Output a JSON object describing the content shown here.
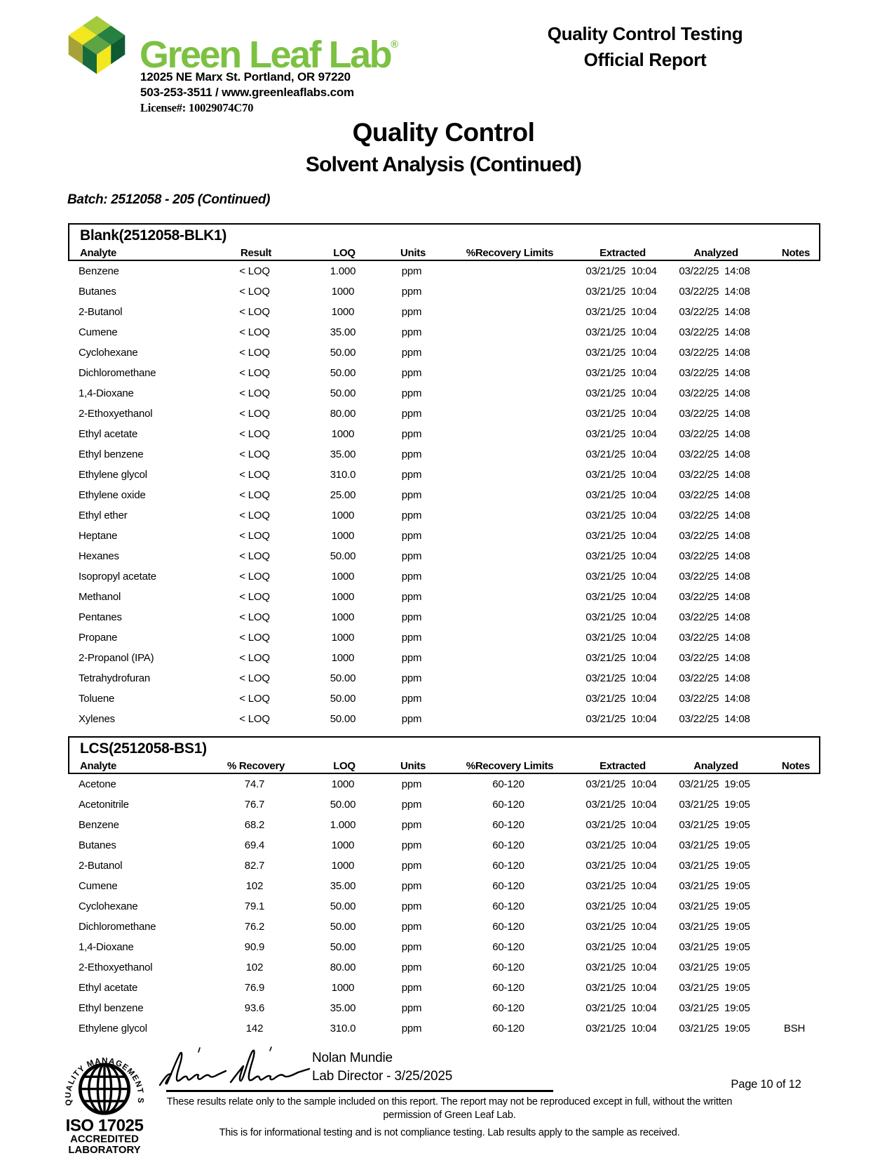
{
  "header": {
    "brand_name": "Green Leaf Lab",
    "brand_reg": "®",
    "address": "12025 NE Marx St. Portland, OR 97220",
    "phone_web": "503-253-3511 / www.greenleaflabs.com",
    "license": "License#: 10029074C70",
    "report_title_line1": "Quality Control Testing",
    "report_title_line2": "Official Report"
  },
  "titles": {
    "main": "Quality Control",
    "subtitle": "Solvent Analysis (Continued)",
    "batch": "Batch:  2512058 - 205 (Continued)"
  },
  "colors": {
    "brand_green": "#7CC142",
    "logo_light_green": "#A3CB3B",
    "logo_yellow": "#F3E71F",
    "logo_dark_green": "#26803F",
    "logo_mid_green": "#5EA344",
    "logo_olive": "#A6A238",
    "logo_deep_green": "#176B3B",
    "logo_darkest_green": "#0E5B33",
    "text": "#000000"
  },
  "tables": [
    {
      "title": "Blank(2512058-BLK1)",
      "columns": [
        "Analyte",
        "Result",
        "LOQ",
        "Units",
        "%Recovery Limits",
        "Extracted",
        "Analyzed",
        "Notes"
      ],
      "rows": [
        [
          "Benzene",
          "< LOQ",
          "1.000",
          "ppm",
          "",
          "03/21/25  10:04",
          "03/22/25  14:08",
          ""
        ],
        [
          "Butanes",
          "< LOQ",
          "1000",
          "ppm",
          "",
          "03/21/25  10:04",
          "03/22/25  14:08",
          ""
        ],
        [
          "2-Butanol",
          "< LOQ",
          "1000",
          "ppm",
          "",
          "03/21/25  10:04",
          "03/22/25  14:08",
          ""
        ],
        [
          "Cumene",
          "< LOQ",
          "35.00",
          "ppm",
          "",
          "03/21/25  10:04",
          "03/22/25  14:08",
          ""
        ],
        [
          "Cyclohexane",
          "< LOQ",
          "50.00",
          "ppm",
          "",
          "03/21/25  10:04",
          "03/22/25  14:08",
          ""
        ],
        [
          "Dichloromethane",
          "< LOQ",
          "50.00",
          "ppm",
          "",
          "03/21/25  10:04",
          "03/22/25  14:08",
          ""
        ],
        [
          "1,4-Dioxane",
          "< LOQ",
          "50.00",
          "ppm",
          "",
          "03/21/25  10:04",
          "03/22/25  14:08",
          ""
        ],
        [
          "2-Ethoxyethanol",
          "< LOQ",
          "80.00",
          "ppm",
          "",
          "03/21/25  10:04",
          "03/22/25  14:08",
          ""
        ],
        [
          "Ethyl acetate",
          "< LOQ",
          "1000",
          "ppm",
          "",
          "03/21/25  10:04",
          "03/22/25  14:08",
          ""
        ],
        [
          "Ethyl benzene",
          "< LOQ",
          "35.00",
          "ppm",
          "",
          "03/21/25  10:04",
          "03/22/25  14:08",
          ""
        ],
        [
          "Ethylene glycol",
          "< LOQ",
          "310.0",
          "ppm",
          "",
          "03/21/25  10:04",
          "03/22/25  14:08",
          ""
        ],
        [
          "Ethylene oxide",
          "< LOQ",
          "25.00",
          "ppm",
          "",
          "03/21/25  10:04",
          "03/22/25  14:08",
          ""
        ],
        [
          "Ethyl ether",
          "< LOQ",
          "1000",
          "ppm",
          "",
          "03/21/25  10:04",
          "03/22/25  14:08",
          ""
        ],
        [
          "Heptane",
          "< LOQ",
          "1000",
          "ppm",
          "",
          "03/21/25  10:04",
          "03/22/25  14:08",
          ""
        ],
        [
          "Hexanes",
          "< LOQ",
          "50.00",
          "ppm",
          "",
          "03/21/25  10:04",
          "03/22/25  14:08",
          ""
        ],
        [
          "Isopropyl acetate",
          "< LOQ",
          "1000",
          "ppm",
          "",
          "03/21/25  10:04",
          "03/22/25  14:08",
          ""
        ],
        [
          "Methanol",
          "< LOQ",
          "1000",
          "ppm",
          "",
          "03/21/25  10:04",
          "03/22/25  14:08",
          ""
        ],
        [
          "Pentanes",
          "< LOQ",
          "1000",
          "ppm",
          "",
          "03/21/25  10:04",
          "03/22/25  14:08",
          ""
        ],
        [
          "Propane",
          "< LOQ",
          "1000",
          "ppm",
          "",
          "03/21/25  10:04",
          "03/22/25  14:08",
          ""
        ],
        [
          "2-Propanol (IPA)",
          "< LOQ",
          "1000",
          "ppm",
          "",
          "03/21/25  10:04",
          "03/22/25  14:08",
          ""
        ],
        [
          "Tetrahydrofuran",
          "< LOQ",
          "50.00",
          "ppm",
          "",
          "03/21/25  10:04",
          "03/22/25  14:08",
          ""
        ],
        [
          "Toluene",
          "< LOQ",
          "50.00",
          "ppm",
          "",
          "03/21/25  10:04",
          "03/22/25  14:08",
          ""
        ],
        [
          "Xylenes",
          "< LOQ",
          "50.00",
          "ppm",
          "",
          "03/21/25  10:04",
          "03/22/25  14:08",
          ""
        ]
      ]
    },
    {
      "title": "LCS(2512058-BS1)",
      "columns": [
        "Analyte",
        "% Recovery",
        "LOQ",
        "Units",
        "%Recovery Limits",
        "Extracted",
        "Analyzed",
        "Notes"
      ],
      "rows": [
        [
          "Acetone",
          "74.7",
          "1000",
          "ppm",
          "60-120",
          "03/21/25  10:04",
          "03/21/25  19:05",
          ""
        ],
        [
          "Acetonitrile",
          "76.7",
          "50.00",
          "ppm",
          "60-120",
          "03/21/25  10:04",
          "03/21/25  19:05",
          ""
        ],
        [
          "Benzene",
          "68.2",
          "1.000",
          "ppm",
          "60-120",
          "03/21/25  10:04",
          "03/21/25  19:05",
          ""
        ],
        [
          "Butanes",
          "69.4",
          "1000",
          "ppm",
          "60-120",
          "03/21/25  10:04",
          "03/21/25  19:05",
          ""
        ],
        [
          "2-Butanol",
          "82.7",
          "1000",
          "ppm",
          "60-120",
          "03/21/25  10:04",
          "03/21/25  19:05",
          ""
        ],
        [
          "Cumene",
          "102",
          "35.00",
          "ppm",
          "60-120",
          "03/21/25  10:04",
          "03/21/25  19:05",
          ""
        ],
        [
          "Cyclohexane",
          "79.1",
          "50.00",
          "ppm",
          "60-120",
          "03/21/25  10:04",
          "03/21/25  19:05",
          ""
        ],
        [
          "Dichloromethane",
          "76.2",
          "50.00",
          "ppm",
          "60-120",
          "03/21/25  10:04",
          "03/21/25  19:05",
          ""
        ],
        [
          "1,4-Dioxane",
          "90.9",
          "50.00",
          "ppm",
          "60-120",
          "03/21/25  10:04",
          "03/21/25  19:05",
          ""
        ],
        [
          "2-Ethoxyethanol",
          "102",
          "80.00",
          "ppm",
          "60-120",
          "03/21/25  10:04",
          "03/21/25  19:05",
          ""
        ],
        [
          "Ethyl acetate",
          "76.9",
          "1000",
          "ppm",
          "60-120",
          "03/21/25  10:04",
          "03/21/25  19:05",
          ""
        ],
        [
          "Ethyl benzene",
          "93.6",
          "35.00",
          "ppm",
          "60-120",
          "03/21/25  10:04",
          "03/21/25  19:05",
          ""
        ],
        [
          "Ethylene glycol",
          "142",
          "310.0",
          "ppm",
          "60-120",
          "03/21/25  10:04",
          "03/21/25  19:05",
          "BSH"
        ]
      ]
    }
  ],
  "footer": {
    "iso_circle_text": "QUALITY MANAGEMENT SYSTEM",
    "iso_line1": "ISO 17025",
    "iso_line2": "ACCREDITED",
    "iso_line3": "LABORATORY",
    "signer_name": "Nolan Mundie",
    "signer_title": "Lab Director - 3/25/2025",
    "page_number": "Page 10 of 12",
    "disclaimer1": "These results relate only to the sample included on this report. The report may not be reproduced except in full, without the written permission of Green Leaf Lab.",
    "disclaimer2": "This is for informational testing and is not compliance testing. Lab results apply to the sample as received."
  }
}
